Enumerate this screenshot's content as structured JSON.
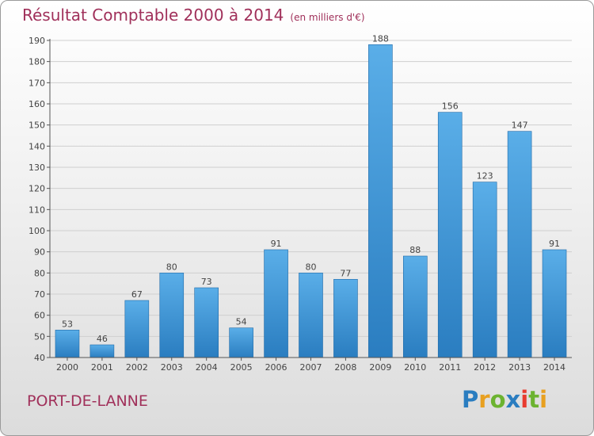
{
  "header": {
    "title": "Résultat Comptable 2000 à 2014",
    "subtitle": "(en milliers d'€)"
  },
  "footer": {
    "location": "PORT-DE-LANNE",
    "brand": "Proxiti"
  },
  "colors": {
    "title": "#a0305a",
    "bar_light": "#5aaee8",
    "bar_dark": "#2a7dc0",
    "grid": "#cfcfcf"
  },
  "chart_data": {
    "type": "bar",
    "title": "Résultat Comptable 2000 à 2014",
    "subtitle": "(en milliers d'€)",
    "categories": [
      "2000",
      "2001",
      "2002",
      "2003",
      "2004",
      "2005",
      "2006",
      "2007",
      "2008",
      "2009",
      "2010",
      "2011",
      "2012",
      "2013",
      "2014"
    ],
    "values": [
      53,
      46,
      67,
      80,
      73,
      54,
      91,
      80,
      77,
      188,
      88,
      156,
      123,
      147,
      91
    ],
    "ylim": [
      40,
      190
    ],
    "yticks": [
      40,
      50,
      60,
      70,
      80,
      90,
      100,
      110,
      120,
      130,
      140,
      150,
      160,
      170,
      180,
      190
    ],
    "xlabel": "",
    "ylabel": "",
    "grid": true
  }
}
